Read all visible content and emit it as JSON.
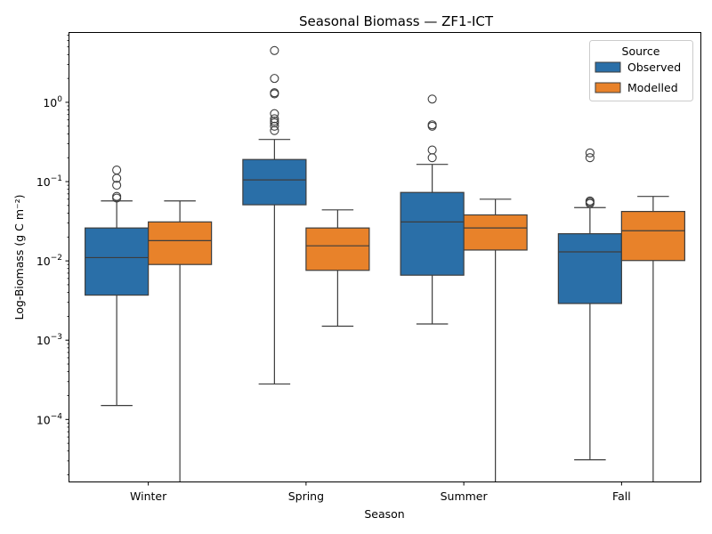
{
  "chart_data": {
    "type": "box",
    "title": "Seasonal Biomass — ZF1-ICT",
    "xlabel": "Season",
    "ylabel": "Log-Biomass (g C m⁻²)",
    "yscale": "log",
    "ylim": [
      1.65e-05,
      7.5
    ],
    "yticks": [
      {
        "value": 0.0001,
        "base": "10",
        "exp": "−4"
      },
      {
        "value": 0.001,
        "base": "10",
        "exp": "−3"
      },
      {
        "value": 0.01,
        "base": "10",
        "exp": "−2"
      },
      {
        "value": 0.1,
        "base": "10",
        "exp": "−1"
      },
      {
        "value": 1,
        "base": "10",
        "exp": "0"
      }
    ],
    "grid": false,
    "legend": {
      "title": "Source",
      "position": "top-right"
    },
    "categories": [
      "Winter",
      "Spring",
      "Summer",
      "Fall"
    ],
    "series": [
      {
        "name": "Observed",
        "color": "#2a6fa8",
        "boxes": [
          {
            "whislo": 0.00015,
            "q1": 0.0037,
            "med": 0.011,
            "q3": 0.026,
            "whishi": 0.057,
            "fliers": [
              0.14,
              0.11,
              0.09,
              0.065,
              0.062
            ]
          },
          {
            "whislo": 0.00028,
            "q1": 0.051,
            "med": 0.105,
            "q3": 0.19,
            "whishi": 0.34,
            "fliers": [
              4.5,
              2.0,
              1.32,
              1.28,
              0.72,
              0.62,
              0.58,
              0.55,
              0.5,
              0.44
            ]
          },
          {
            "whislo": 0.0016,
            "q1": 0.0066,
            "med": 0.031,
            "q3": 0.073,
            "whishi": 0.165,
            "fliers": [
              1.1,
              0.52,
              0.5,
              0.25,
              0.2
            ]
          },
          {
            "whislo": 3.1e-05,
            "q1": 0.0029,
            "med": 0.013,
            "q3": 0.022,
            "whishi": 0.047,
            "fliers": [
              0.23,
              0.2,
              0.057,
              0.055,
              0.053
            ]
          }
        ]
      },
      {
        "name": "Modelled",
        "color": "#e8822a",
        "boxes": [
          {
            "whislo": 1.65e-05,
            "q1": 0.009,
            "med": 0.018,
            "q3": 0.031,
            "whishi": 0.057,
            "fliers": []
          },
          {
            "whislo": 0.0015,
            "q1": 0.0076,
            "med": 0.0155,
            "q3": 0.026,
            "whishi": 0.044,
            "fliers": []
          },
          {
            "whislo": 1.65e-05,
            "q1": 0.0137,
            "med": 0.026,
            "q3": 0.038,
            "whishi": 0.06,
            "fliers": []
          },
          {
            "whislo": 1.65e-05,
            "q1": 0.0101,
            "med": 0.024,
            "q3": 0.042,
            "whishi": 0.065,
            "fliers": []
          }
        ]
      }
    ]
  }
}
